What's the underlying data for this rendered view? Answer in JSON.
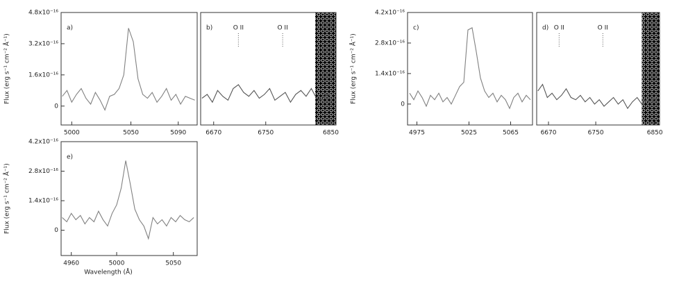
{
  "chart_data": [
    {
      "type": "line",
      "label": "a)",
      "ylabel": "Flux (erg s⁻¹ cm⁻² Å⁻¹)",
      "color": "#808080",
      "xlim": [
        4991,
        5106
      ],
      "ylim": [
        -0.97,
        4.8
      ],
      "xticks": [
        5000,
        5050,
        5090
      ],
      "yticks": [
        0,
        {
          "value": 1.6,
          "label": "1.6x10⁻¹⁶"
        },
        {
          "value": 3.2,
          "label": "3.2x10⁻¹⁶"
        },
        {
          "value": 4.8,
          "label": "4.8x10⁻¹⁶"
        }
      ],
      "x": [
        4992,
        4996,
        5000,
        5004,
        5008,
        5012,
        5016,
        5020,
        5024,
        5028,
        5032,
        5036,
        5040,
        5044,
        5048,
        5052,
        5056,
        5060,
        5064,
        5068,
        5072,
        5076,
        5080,
        5084,
        5088,
        5092,
        5096,
        5100,
        5104
      ],
      "values": [
        0.5,
        0.8,
        0.2,
        0.6,
        0.9,
        0.4,
        0.1,
        0.7,
        0.3,
        -0.2,
        0.5,
        0.6,
        0.9,
        1.6,
        4.0,
        3.3,
        1.4,
        0.6,
        0.4,
        0.7,
        0.2,
        0.5,
        0.9,
        0.3,
        0.6,
        0.1,
        0.5,
        0.4,
        0.3
      ]
    },
    {
      "type": "line",
      "label": "b)",
      "color": "#555555",
      "xlim": [
        6650,
        6858
      ],
      "ylim": [
        -0.97,
        4.8
      ],
      "xticks": [
        6670,
        6750,
        6850
      ],
      "annotations": [
        {
          "text": "O II",
          "x": 6708
        },
        {
          "text": "O II",
          "x": 6776
        }
      ],
      "masked": [
        6826,
        6858
      ],
      "x": [
        6652,
        6660,
        6668,
        6676,
        6684,
        6692,
        6700,
        6708,
        6716,
        6724,
        6732,
        6740,
        6748,
        6756,
        6764,
        6772,
        6780,
        6788,
        6796,
        6804,
        6812,
        6820,
        6828,
        6836,
        6844,
        6852
      ],
      "values": [
        0.4,
        0.6,
        0.2,
        0.8,
        0.5,
        0.3,
        0.9,
        1.1,
        0.7,
        0.5,
        0.8,
        0.4,
        0.6,
        0.9,
        0.3,
        0.5,
        0.7,
        0.2,
        0.6,
        0.8,
        0.5,
        0.9,
        0.4,
        0.3,
        0.6,
        0.5
      ]
    },
    {
      "type": "line",
      "label": "c)",
      "ylabel": "Flux (erg s⁻¹ cm⁻² Å⁻¹)",
      "color": "#808080",
      "xlim": [
        4966,
        5086
      ],
      "ylim": [
        -0.96,
        4.2
      ],
      "xticks": [
        4975,
        5025,
        5065
      ],
      "yticks": [
        0,
        {
          "value": 1.4,
          "label": "1.4x10⁻¹⁶"
        },
        {
          "value": 2.8,
          "label": "2.8x10⁻¹⁶"
        },
        {
          "value": 4.2,
          "label": "4.2x10⁻¹⁶"
        }
      ],
      "x": [
        4968,
        4972,
        4976,
        4980,
        4984,
        4988,
        4992,
        4996,
        5000,
        5004,
        5008,
        5012,
        5016,
        5020,
        5024,
        5028,
        5032,
        5036,
        5040,
        5044,
        5048,
        5052,
        5056,
        5060,
        5064,
        5068,
        5072,
        5076,
        5080,
        5084
      ],
      "values": [
        0.5,
        0.2,
        0.6,
        0.3,
        -0.1,
        0.4,
        0.2,
        0.5,
        0.1,
        0.3,
        0.0,
        0.4,
        0.8,
        1.0,
        3.4,
        3.5,
        2.4,
        1.2,
        0.6,
        0.3,
        0.5,
        0.1,
        0.4,
        0.2,
        -0.2,
        0.3,
        0.5,
        0.1,
        0.4,
        0.2
      ]
    },
    {
      "type": "line",
      "label": "d)",
      "color": "#555555",
      "xlim": [
        6650,
        6858
      ],
      "ylim": [
        -0.96,
        4.2
      ],
      "xticks": [
        6670,
        6750,
        6850
      ],
      "annotations": [
        {
          "text": "O II",
          "x": 6688
        },
        {
          "text": "O II",
          "x": 6762
        }
      ],
      "masked": [
        6828,
        6858
      ],
      "x": [
        6652,
        6660,
        6668,
        6676,
        6684,
        6692,
        6700,
        6708,
        6716,
        6724,
        6732,
        6740,
        6748,
        6756,
        6764,
        6772,
        6780,
        6788,
        6796,
        6804,
        6812,
        6820,
        6828,
        6836,
        6844,
        6852
      ],
      "values": [
        0.6,
        0.9,
        0.3,
        0.5,
        0.2,
        0.4,
        0.7,
        0.3,
        0.2,
        0.4,
        0.1,
        0.3,
        0.0,
        0.2,
        -0.1,
        0.1,
        0.3,
        0.0,
        0.2,
        -0.2,
        0.1,
        0.3,
        0.0,
        0.2,
        0.1,
        0.3
      ]
    },
    {
      "type": "line",
      "label": "e)",
      "ylabel": "Flux (erg s⁻¹ cm⁻² Å⁻¹)",
      "xlabel": "Wavelength (Å)",
      "color": "#808080",
      "xlim": [
        4951,
        5071
      ],
      "ylim": [
        -1.2,
        4.2
      ],
      "xticks": [
        4960,
        5000,
        5050
      ],
      "yticks": [
        0,
        {
          "value": 1.4,
          "label": "1.4x10⁻¹⁶"
        },
        {
          "value": 2.8,
          "label": "2.8x10⁻¹⁶"
        },
        {
          "value": 4.2,
          "label": "4.2x10⁻¹⁶"
        }
      ],
      "x": [
        4952,
        4956,
        4960,
        4964,
        4968,
        4972,
        4976,
        4980,
        4984,
        4988,
        4992,
        4996,
        5000,
        5004,
        5008,
        5012,
        5016,
        5020,
        5024,
        5028,
        5032,
        5036,
        5040,
        5044,
        5048,
        5052,
        5056,
        5060,
        5064,
        5068
      ],
      "values": [
        0.6,
        0.4,
        0.8,
        0.5,
        0.7,
        0.3,
        0.6,
        0.4,
        0.9,
        0.5,
        0.2,
        0.8,
        1.2,
        2.0,
        3.3,
        2.2,
        1.0,
        0.5,
        0.2,
        -0.4,
        0.6,
        0.3,
        0.5,
        0.2,
        0.6,
        0.4,
        0.7,
        0.5,
        0.4,
        0.6
      ]
    }
  ]
}
